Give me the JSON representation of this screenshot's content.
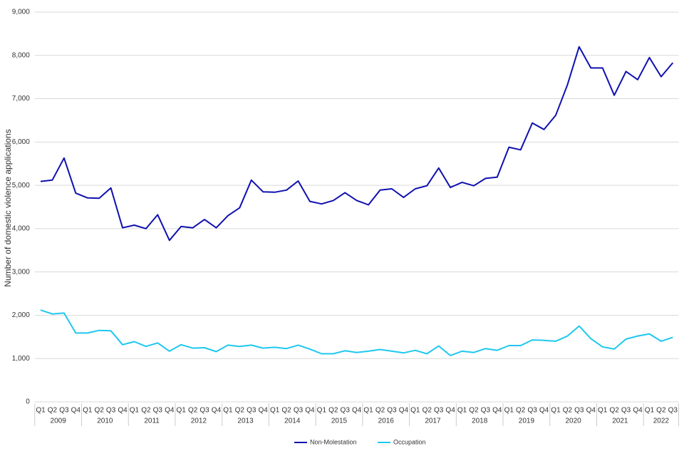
{
  "chart_data": {
    "type": "line",
    "y_axis_label": "Number of domestic violence applications",
    "categories": [
      "Q1",
      "Q2",
      "Q3",
      "Q4",
      "Q1",
      "Q2",
      "Q3",
      "Q4",
      "Q1",
      "Q2",
      "Q3",
      "Q4",
      "Q1",
      "Q2",
      "Q3",
      "Q4",
      "Q1",
      "Q2",
      "Q3",
      "Q4",
      "Q1",
      "Q2",
      "Q3",
      "Q4",
      "Q1",
      "Q2",
      "Q3",
      "Q4",
      "Q1",
      "Q2",
      "Q3",
      "Q4",
      "Q1",
      "Q2",
      "Q3",
      "Q4",
      "Q1",
      "Q2",
      "Q3",
      "Q4",
      "Q1",
      "Q2",
      "Q3",
      "Q4",
      "Q1",
      "Q2",
      "Q3",
      "Q4",
      "Q1",
      "Q2",
      "Q3",
      "Q4",
      "Q1",
      "Q2",
      "Q3"
    ],
    "x_groups": [
      "2009",
      "2010",
      "2011",
      "2012",
      "2013",
      "2014",
      "2015",
      "2016",
      "2017",
      "2018",
      "2019",
      "2020",
      "2021",
      "2022"
    ],
    "series": [
      {
        "name": "Non-Molestation",
        "color": "#1010b0",
        "values": [
          5090,
          5120,
          5630,
          4820,
          4710,
          4700,
          4940,
          4020,
          4080,
          4000,
          4320,
          3730,
          4050,
          4020,
          4210,
          4020,
          4300,
          4480,
          5120,
          4850,
          4840,
          4890,
          5100,
          4630,
          4570,
          4650,
          4830,
          4650,
          4550,
          4890,
          4920,
          4720,
          4920,
          4990,
          5400,
          4950,
          5070,
          4990,
          5160,
          5190,
          5880,
          5820,
          6440,
          6290,
          6620,
          7320,
          8200,
          7710,
          7710,
          7080,
          7630,
          7440,
          7950,
          7510,
          7830
        ]
      },
      {
        "name": "Occupation",
        "color": "#1ec8f0",
        "values": [
          2120,
          2030,
          2050,
          1590,
          1590,
          1650,
          1640,
          1320,
          1390,
          1280,
          1360,
          1170,
          1320,
          1240,
          1250,
          1160,
          1310,
          1280,
          1310,
          1240,
          1260,
          1230,
          1310,
          1220,
          1110,
          1110,
          1180,
          1140,
          1170,
          1210,
          1170,
          1130,
          1190,
          1110,
          1290,
          1070,
          1170,
          1140,
          1230,
          1190,
          1300,
          1300,
          1430,
          1420,
          1400,
          1520,
          1750,
          1460,
          1270,
          1220,
          1450,
          1520,
          1570,
          1400,
          1490
        ]
      }
    ],
    "ylim": [
      0,
      9000
    ],
    "yticks": [
      0,
      {
        "value": 1000,
        "label": "1,000"
      },
      {
        "value": 2000,
        "label": "2,000"
      },
      {
        "value": 3000,
        "label": "3,000"
      },
      {
        "value": 4000,
        "label": "4,000"
      },
      {
        "value": 5000,
        "label": "5,000"
      },
      {
        "value": 6000,
        "label": "6,000"
      },
      {
        "value": 7000,
        "label": "7,000"
      },
      {
        "value": 8000,
        "label": "8,000"
      },
      {
        "value": 9000,
        "label": "9,000"
      }
    ],
    "grid": true,
    "legend": "bottom"
  }
}
